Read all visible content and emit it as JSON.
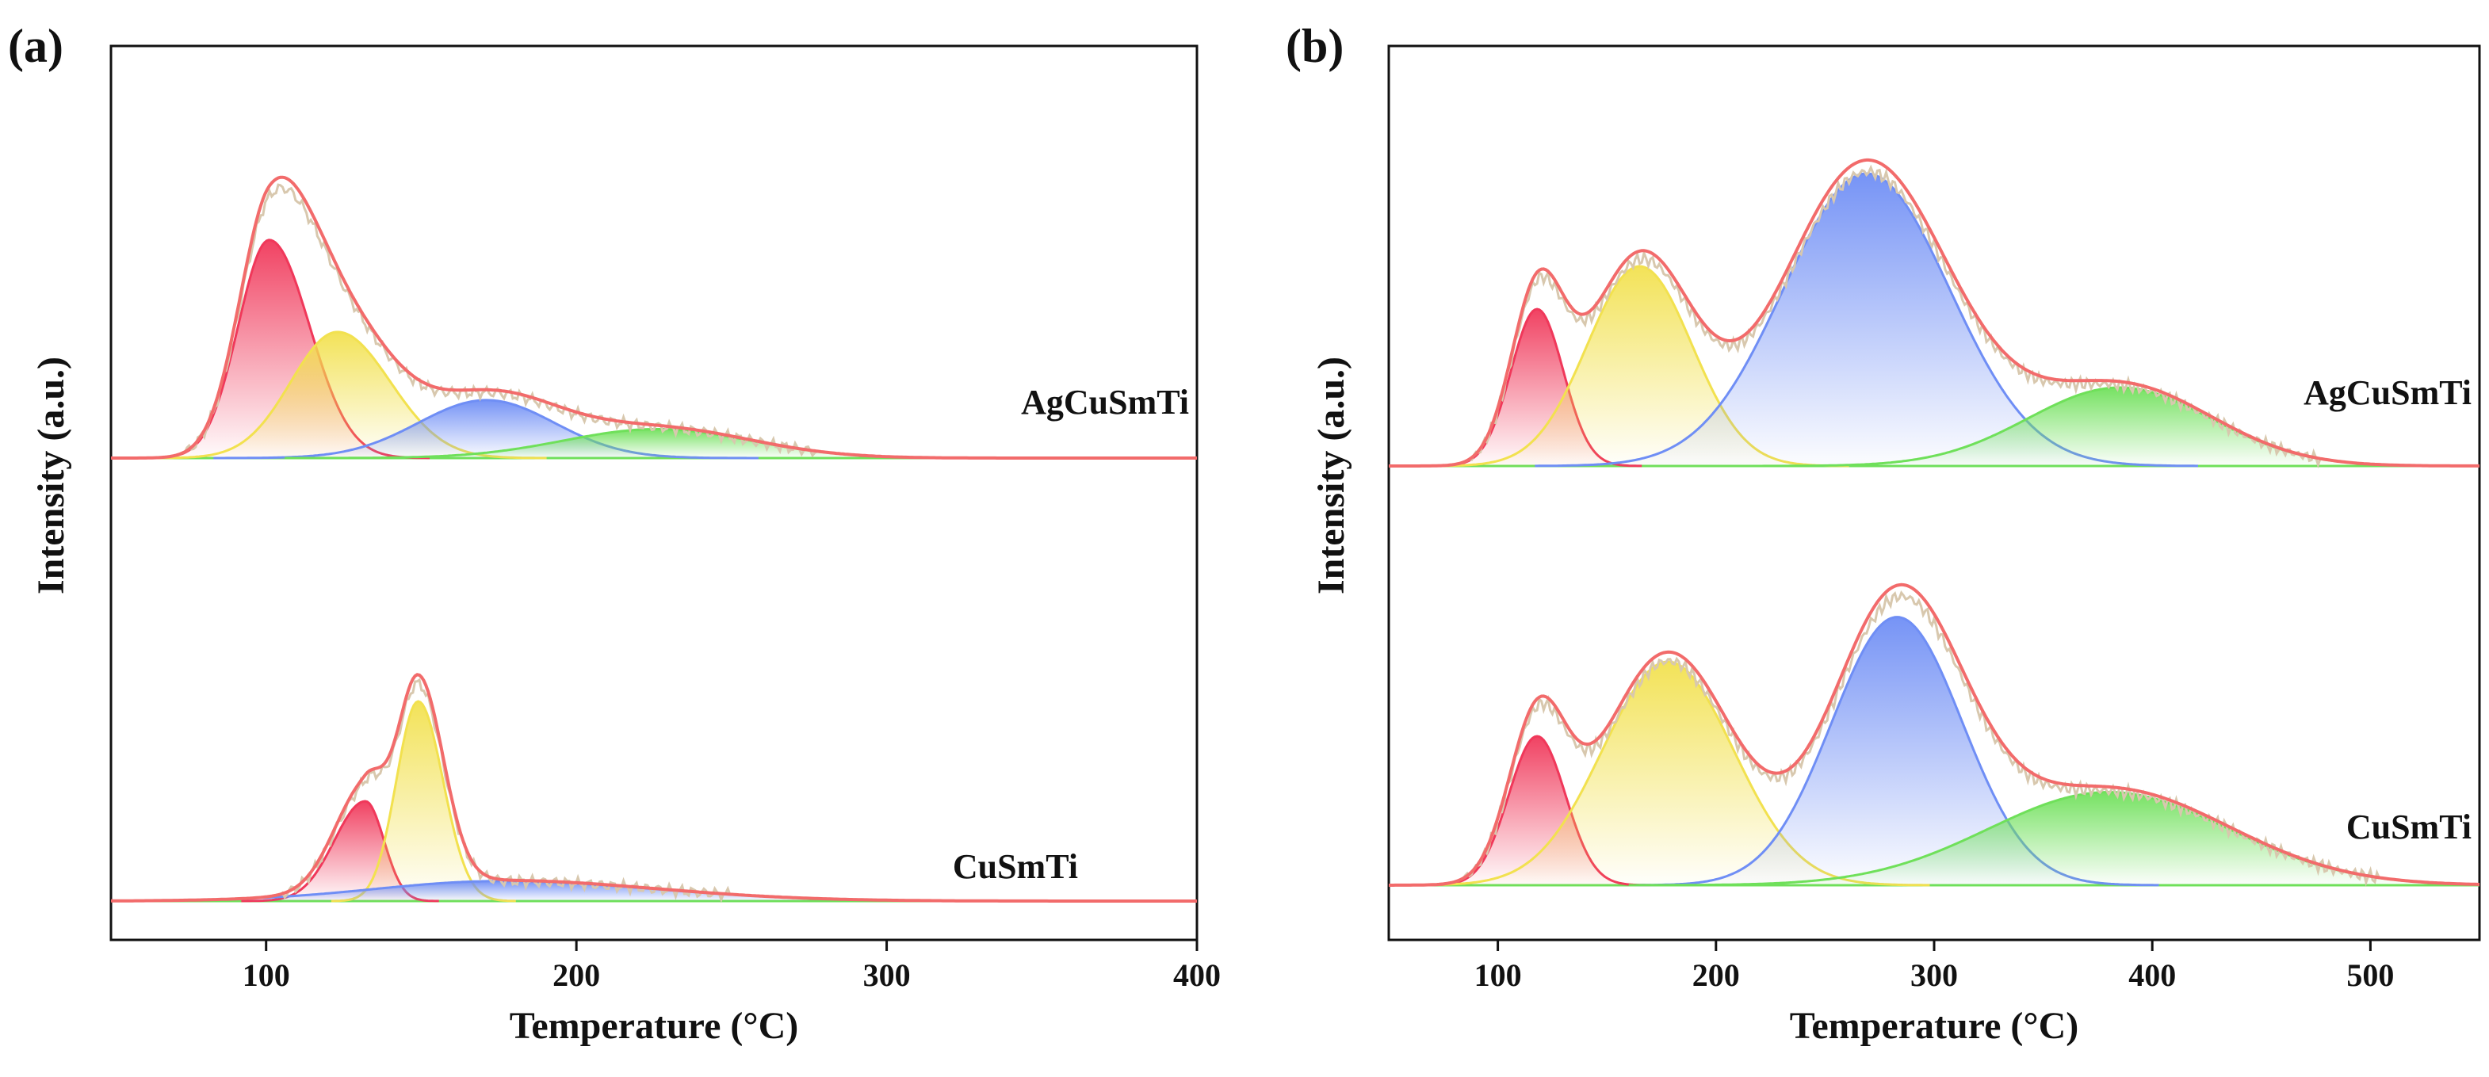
{
  "chart_data": [
    {
      "type": "line",
      "panel_label": "(a)",
      "xlabel": "Temperature (°C)",
      "ylabel": "Intensity (a.u.)",
      "xlim": [
        50,
        400
      ],
      "xticks": [
        100,
        200,
        300,
        400
      ],
      "yticks": "none",
      "grid": false,
      "colors": {
        "measured": "#d8c8ae",
        "envelope": "#f26b6b",
        "peak1": "#f0385a",
        "peak2": "#f2e14f",
        "peak3": "#6f8ef5",
        "peak4": "#6fe05a"
      },
      "samples": [
        {
          "name": "AgCuSmTi",
          "position": "top",
          "peaks": [
            {
              "component": "peak1",
              "center": 101,
              "amplitude": 0.64,
              "sigma_left": 10,
              "sigma_right": 13
            },
            {
              "component": "peak2",
              "center": 123,
              "amplitude": 0.37,
              "sigma_left": 15,
              "sigma_right": 17
            },
            {
              "component": "peak3",
              "center": 171,
              "amplitude": 0.17,
              "sigma_left": 22,
              "sigma_right": 22
            },
            {
              "component": "peak4",
              "center": 226,
              "amplitude": 0.085,
              "sigma_left": 30,
              "sigma_right": 30
            }
          ]
        },
        {
          "name": "CuSmTi",
          "position": "bottom",
          "peaks": [
            {
              "component": "peak1",
              "center": 132,
              "amplitude": 0.3,
              "sigma_left": 10,
              "sigma_right": 6
            },
            {
              "component": "peak2",
              "center": 149,
              "amplitude": 0.6,
              "sigma_left": 7,
              "sigma_right": 8
            },
            {
              "component": "peak3",
              "center": 175,
              "amplitude": 0.06,
              "sigma_left": 40,
              "sigma_right": 50
            }
          ]
        }
      ]
    },
    {
      "type": "line",
      "panel_label": "(b)",
      "xlabel": "Temperature (°C)",
      "ylabel": "Intensity (a.u.)",
      "xlim": [
        50,
        550
      ],
      "xticks": [
        100,
        200,
        300,
        400,
        500
      ],
      "yticks": "none",
      "grid": false,
      "colors": {
        "measured": "#d8c8ae",
        "envelope": "#f26b6b",
        "peak1": "#f0385a",
        "peak2": "#f2e14f",
        "peak3": "#6f8ef5",
        "peak4": "#6fe05a"
      },
      "samples": [
        {
          "name": "AgCuSmTi",
          "position": "top",
          "peaks": [
            {
              "component": "peak1",
              "center": 118,
              "amplitude": 0.44,
              "sigma_left": 12,
              "sigma_right": 12
            },
            {
              "component": "peak2",
              "center": 165,
              "amplitude": 0.56,
              "sigma_left": 24,
              "sigma_right": 24
            },
            {
              "component": "peak3",
              "center": 269,
              "amplitude": 0.82,
              "sigma_left": 38,
              "sigma_right": 38
            },
            {
              "component": "peak4",
              "center": 385,
              "amplitude": 0.22,
              "sigma_left": 42,
              "sigma_right": 42
            }
          ]
        },
        {
          "name": "CuSmTi",
          "position": "bottom",
          "peaks": [
            {
              "component": "peak1",
              "center": 118,
              "amplitude": 0.4,
              "sigma_left": 13,
              "sigma_right": 13
            },
            {
              "component": "peak2",
              "center": 178,
              "amplitude": 0.6,
              "sigma_left": 30,
              "sigma_right": 30
            },
            {
              "component": "peak3",
              "center": 283,
              "amplitude": 0.72,
              "sigma_left": 30,
              "sigma_right": 30
            },
            {
              "component": "peak4",
              "center": 380,
              "amplitude": 0.25,
              "sigma_left": 55,
              "sigma_right": 55
            }
          ]
        }
      ]
    }
  ]
}
